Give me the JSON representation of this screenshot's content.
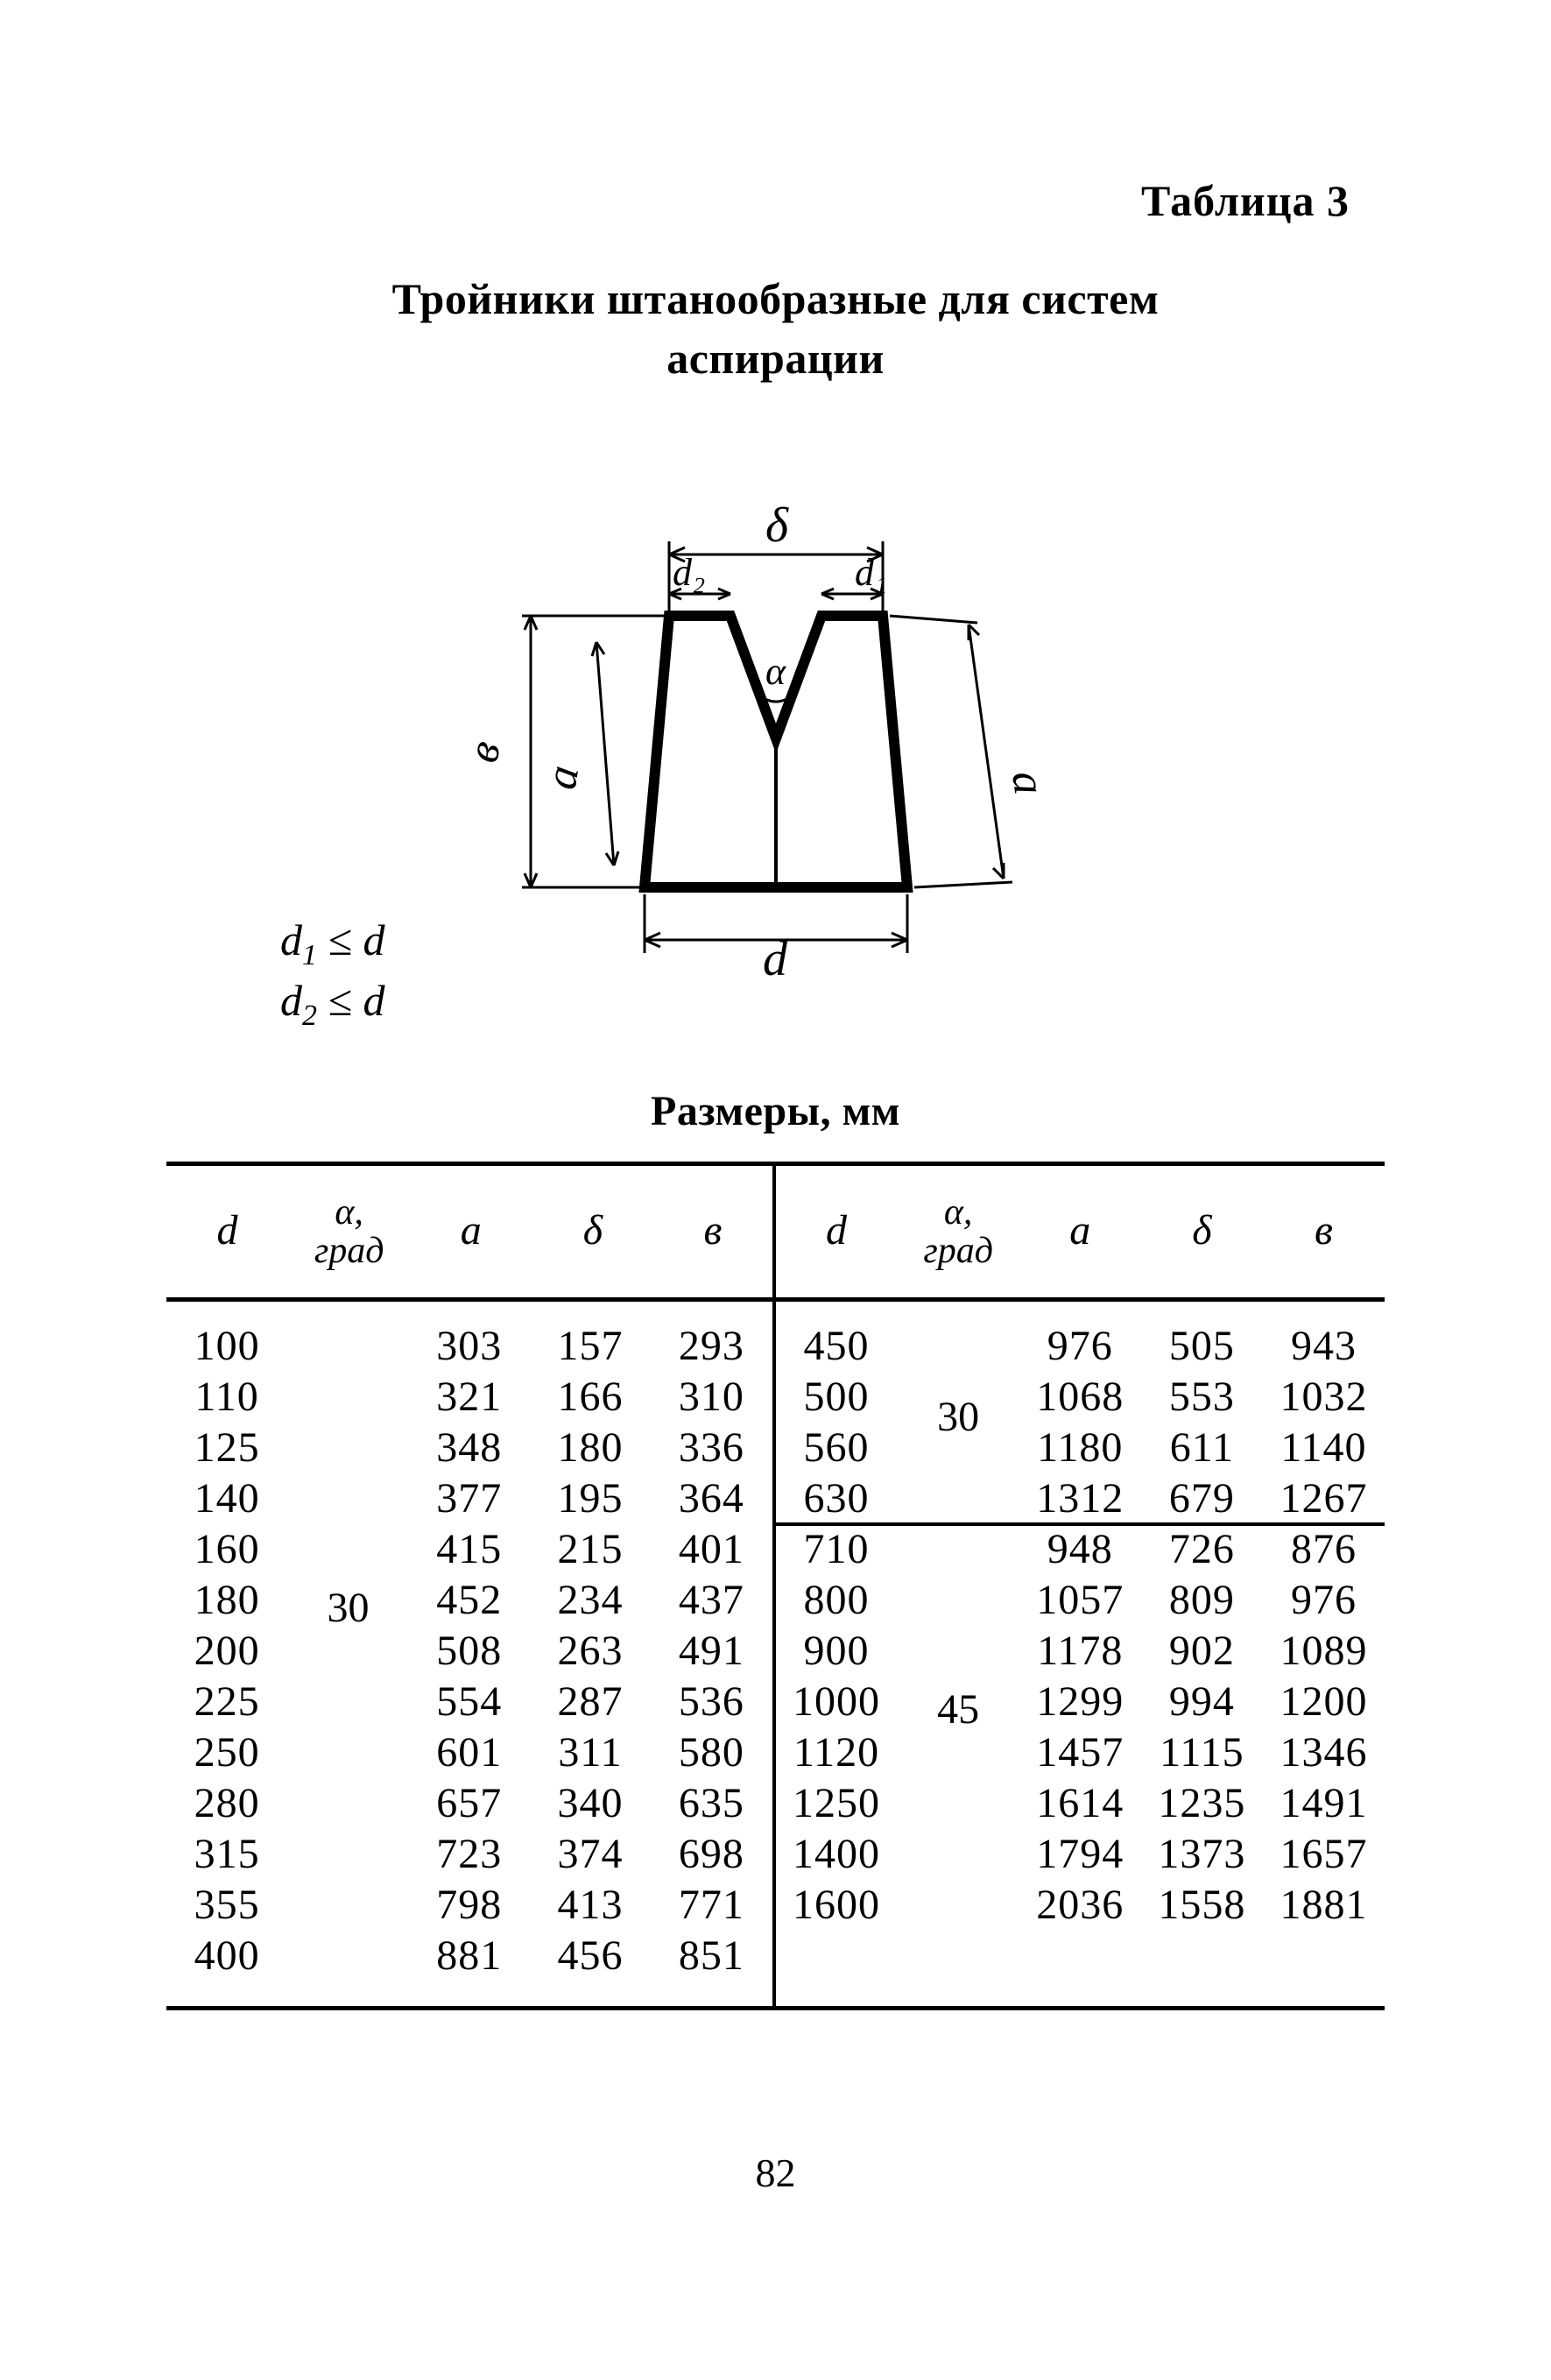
{
  "page_number": "82",
  "labels": {
    "table_no": "Таблица 3",
    "title_line1": "Тройники штанообразные для систем",
    "title_line2": "аспирации",
    "sizes_caption": "Размеры, мм"
  },
  "constraints": {
    "line1_html": "d<span class=\"sub\">1</span> ≤ d",
    "line2_html": "d<span class=\"sub\">2</span> ≤ d"
  },
  "diagram_labels": {
    "delta_top": "δ",
    "d2": "d₂",
    "d1": "d₁",
    "b_left": "в",
    "a_left": "a",
    "alpha_mid": "α",
    "a_right": "a",
    "d_bottom": "d"
  },
  "headers": [
    "d",
    "α,\nград",
    "a",
    "δ",
    "в",
    "d",
    "α,\nград",
    "a",
    "δ",
    "в"
  ],
  "left_alpha": "30",
  "left_rows": [
    [
      "100",
      "",
      "303",
      "157",
      "293"
    ],
    [
      "110",
      "",
      "321",
      "166",
      "310"
    ],
    [
      "125",
      "",
      "348",
      "180",
      "336"
    ],
    [
      "140",
      "",
      "377",
      "195",
      "364"
    ],
    [
      "160",
      "",
      "415",
      "215",
      "401"
    ],
    [
      "180",
      "",
      "452",
      "234",
      "437"
    ],
    [
      "200",
      "",
      "508",
      "263",
      "491"
    ],
    [
      "225",
      "",
      "554",
      "287",
      "536"
    ],
    [
      "250",
      "",
      "601",
      "311",
      "580"
    ],
    [
      "280",
      "",
      "657",
      "340",
      "635"
    ],
    [
      "315",
      "",
      "723",
      "374",
      "698"
    ],
    [
      "355",
      "",
      "798",
      "413",
      "771"
    ],
    [
      "400",
      "",
      "881",
      "456",
      "851"
    ]
  ],
  "right_top_alpha": "30",
  "right_bottom_alpha": "45",
  "right_rows_top": [
    [
      "450",
      "",
      "976",
      "505",
      "943"
    ],
    [
      "500",
      "",
      "1068",
      "553",
      "1032"
    ],
    [
      "560",
      "",
      "1180",
      "611",
      "1140"
    ],
    [
      "630",
      "",
      "1312",
      "679",
      "1267"
    ]
  ],
  "right_rows_bottom": [
    [
      "710",
      "",
      "948",
      "726",
      "876"
    ],
    [
      "800",
      "",
      "1057",
      "809",
      "976"
    ],
    [
      "900",
      "",
      "1178",
      "902",
      "1089"
    ],
    [
      "1000",
      "",
      "1299",
      "994",
      "1200"
    ],
    [
      "1120",
      "",
      "1457",
      "1115",
      "1346"
    ],
    [
      "1250",
      "",
      "1614",
      "1235",
      "1491"
    ],
    [
      "1400",
      "",
      "1794",
      "1373",
      "1657"
    ],
    [
      "1600",
      "",
      "2036",
      "1558",
      "1881"
    ]
  ],
  "colors": {
    "stroke": "#000000",
    "bg": "#ffffff"
  },
  "diagram": {
    "stroke_width_heavy": 12,
    "stroke_width_thin": 3
  }
}
